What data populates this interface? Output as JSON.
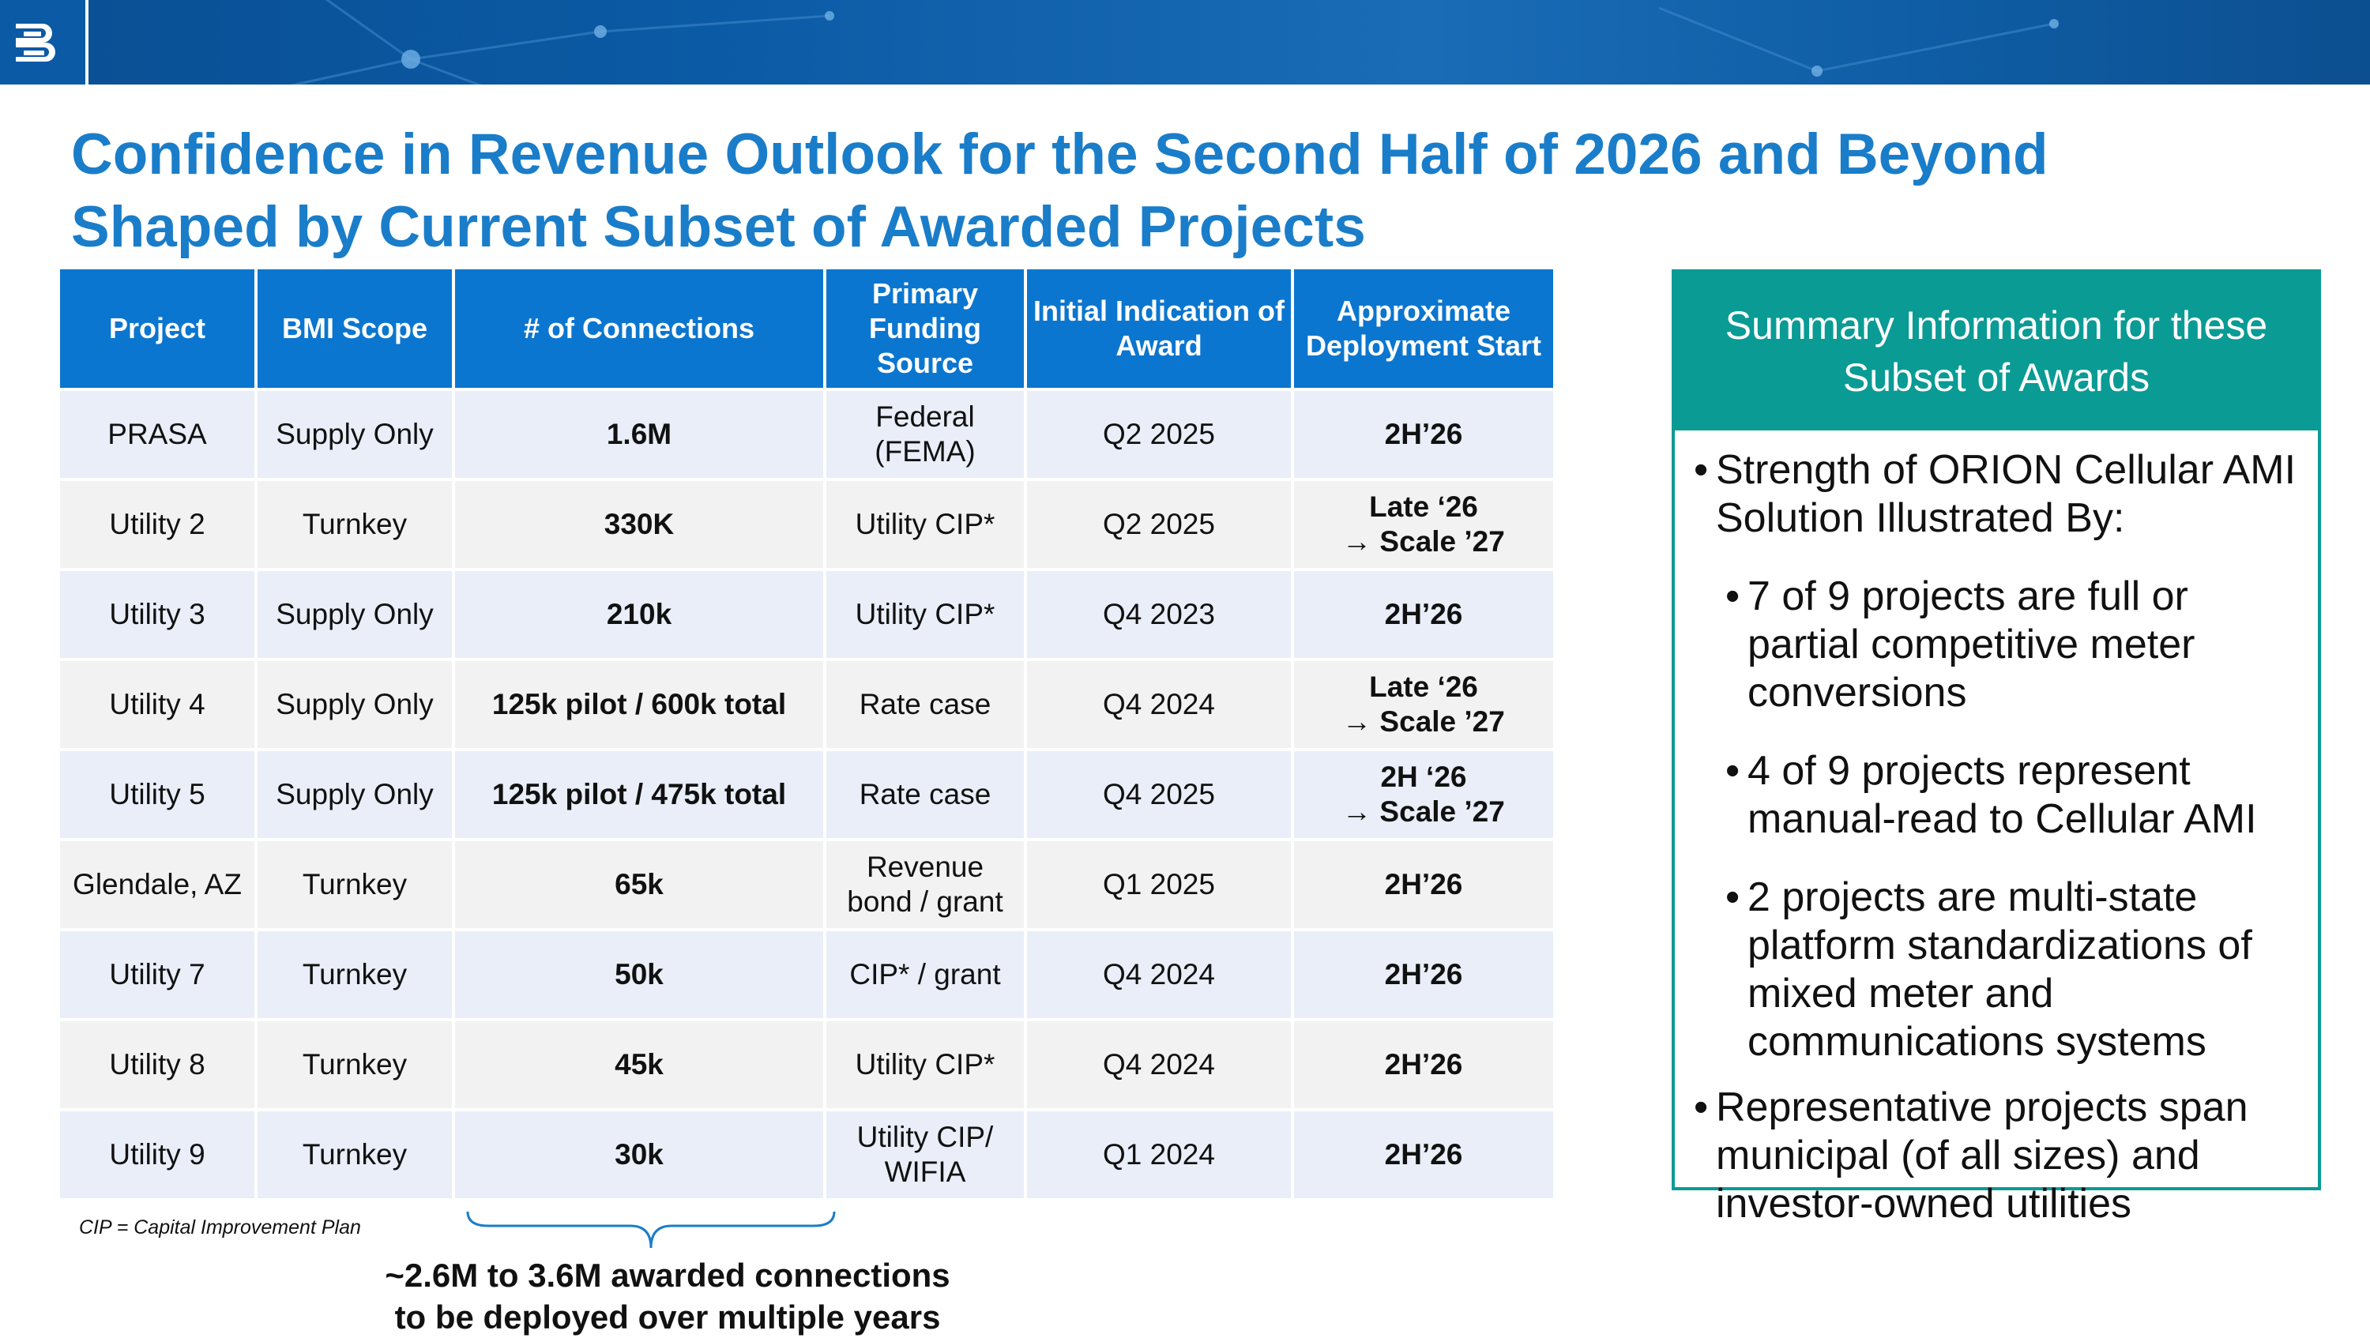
{
  "slide": {
    "title_line1": "Confidence in Revenue Outlook for the Second Half of 2026 and Beyond",
    "title_line2": "Shaped by Current Subset of Awarded Projects"
  },
  "table": {
    "headers": [
      "Project",
      "BMI Scope",
      "# of Connections",
      "Primary Funding Source",
      "Initial Indication of Award",
      "Approximate Deployment Start"
    ],
    "rows": [
      {
        "project": "PRASA",
        "scope": "Supply Only",
        "connections": "1.6M",
        "funding": "Federal (FEMA)",
        "award": "Q2 2025",
        "start_l1": "2H’26",
        "start_l2": ""
      },
      {
        "project": "Utility 2",
        "scope": "Turnkey",
        "connections": "330K",
        "funding": "Utility CIP*",
        "award": "Q2 2025",
        "start_l1": "Late ‘26",
        "start_l2": "→ Scale ’27"
      },
      {
        "project": "Utility 3",
        "scope": "Supply Only",
        "connections": "210k",
        "funding": "Utility CIP*",
        "award": "Q4 2023",
        "start_l1": "2H’26",
        "start_l2": ""
      },
      {
        "project": "Utility 4",
        "scope": "Supply Only",
        "connections": "125k pilot / 600k total",
        "funding": "Rate case",
        "award": "Q4 2024",
        "start_l1": "Late ‘26",
        "start_l2": "→ Scale ’27"
      },
      {
        "project": "Utility 5",
        "scope": "Supply Only",
        "connections": "125k pilot / 475k total",
        "funding": "Rate case",
        "award": "Q4 2025",
        "start_l1": "2H ‘26",
        "start_l2": "→ Scale ’27"
      },
      {
        "project": "Glendale, AZ",
        "scope": "Turnkey",
        "connections": "65k",
        "funding": "Revenue bond / grant",
        "award": "Q1 2025",
        "start_l1": "2H’26",
        "start_l2": ""
      },
      {
        "project": "Utility 7",
        "scope": "Turnkey",
        "connections": "50k",
        "funding": "CIP* / grant",
        "award": "Q4 2024",
        "start_l1": "2H’26",
        "start_l2": ""
      },
      {
        "project": "Utility 8",
        "scope": "Turnkey",
        "connections": "45k",
        "funding": "Utility CIP*",
        "award": "Q4 2024",
        "start_l1": "2H’26",
        "start_l2": ""
      },
      {
        "project": "Utility 9",
        "scope": "Turnkey",
        "connections": "30k",
        "funding": "Utility CIP/ WIFIA",
        "award": "Q1 2024",
        "start_l1": "2H’26",
        "start_l2": ""
      }
    ]
  },
  "footnote": "CIP = Capital Improvement Plan",
  "brace_label_line1": "~2.6M to 3.6M awarded connections",
  "brace_label_line2": "to be deployed over multiple years",
  "summary": {
    "header_line1": "Summary Information for these",
    "header_line2": "Subset of Awards",
    "bullet1": "Strength of ORION Cellular AMI Solution Illustrated By:",
    "sub1": "7 of 9 projects are full or partial competitive meter conversions",
    "sub2": "4 of 9 projects represent manual-read to Cellular AMI",
    "sub3": "2 projects are multi-state platform standardizations of mixed meter and communications systems",
    "bullet2": "Representative projects span municipal (of all sizes) and investor-owned utilities"
  },
  "colors": {
    "title_blue": "#1a7dc9",
    "header_blue": "#0b76cf",
    "teal": "#0a9b95",
    "row_light_blue": "#e9eef8",
    "row_light_gray": "#f2f2f2"
  },
  "icons": [
    "company-logo-icon"
  ]
}
